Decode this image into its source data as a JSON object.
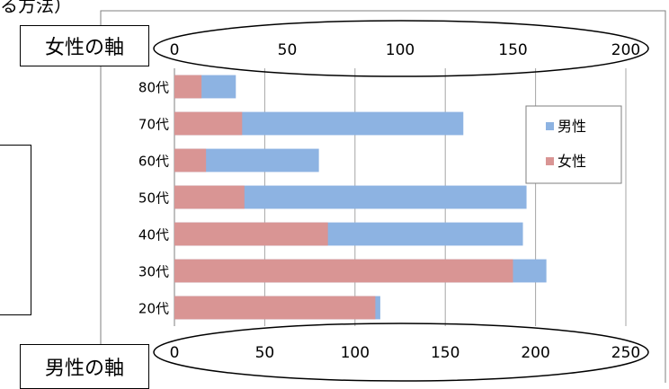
{
  "top_text": "る方法）",
  "callouts": {
    "female_axis": "女性の軸",
    "male_axis": "男性の軸"
  },
  "chart_data": {
    "type": "bar",
    "orientation": "horizontal",
    "stacked": true,
    "categories": [
      "80代",
      "70代",
      "60代",
      "50代",
      "40代",
      "30代",
      "20代"
    ],
    "series": [
      {
        "name": "女性",
        "color": "#d99594",
        "axis": "top",
        "values": [
          12,
          30,
          14,
          31,
          68,
          150,
          89
        ]
      },
      {
        "name": "男性",
        "color": "#8db3e2",
        "axis": "bottom",
        "values": [
          34,
          160,
          80,
          195,
          193,
          206,
          114
        ]
      }
    ],
    "top_axis": {
      "min": 0,
      "max": 200,
      "ticks": [
        "0",
        "50",
        "100",
        "150",
        "200"
      ]
    },
    "bottom_axis": {
      "min": 0,
      "max": 250,
      "ticks": [
        "0",
        "50",
        "100",
        "150",
        "200",
        "250"
      ]
    },
    "grid": true,
    "legend": {
      "position": "right",
      "entries": [
        "男性",
        "女性"
      ]
    }
  }
}
